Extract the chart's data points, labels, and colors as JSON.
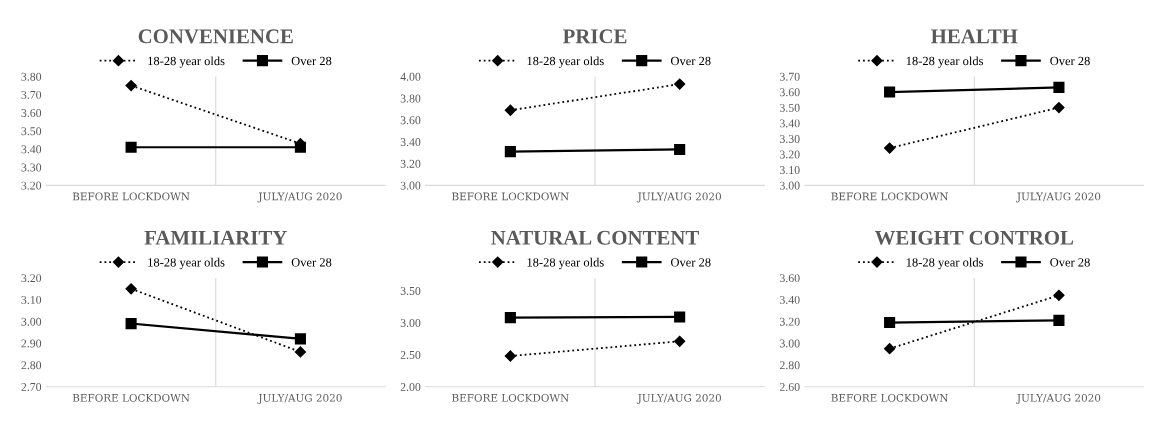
{
  "chart_data": [
    {
      "type": "line",
      "title": "CONVENIENCE",
      "categories": [
        "BEFORE LOCKDOWN",
        "JULY/AUG 2020"
      ],
      "ylim": [
        3.2,
        3.8
      ],
      "yticks": [
        {
          "value": 3.2,
          "label": "3.20"
        },
        {
          "value": 3.3,
          "label": "3.30"
        },
        {
          "value": 3.4,
          "label": "3.40"
        },
        {
          "value": 3.5,
          "label": "3.50"
        },
        {
          "value": 3.6,
          "label": "3.60"
        },
        {
          "value": 3.7,
          "label": "3.70"
        },
        {
          "value": 3.8,
          "label": "3.80"
        }
      ],
      "grid": "x",
      "legend": "top",
      "series": [
        {
          "name": "18-28 year olds",
          "color": "#000000",
          "marker": "diamond",
          "line_style": "dotted",
          "values": [
            3.75,
            3.43
          ]
        },
        {
          "name": "Over 28",
          "color": "#000000",
          "marker": "square",
          "line_style": "solid",
          "values": [
            3.41,
            3.41
          ]
        }
      ]
    },
    {
      "type": "line",
      "title": "PRICE",
      "categories": [
        "BEFORE LOCKDOWN",
        "JULY/AUG 2020"
      ],
      "ylim": [
        3.0,
        4.0
      ],
      "yticks": [
        {
          "value": 3.0,
          "label": "3.00"
        },
        {
          "value": 3.2,
          "label": "3.20"
        },
        {
          "value": 3.4,
          "label": "3.40"
        },
        {
          "value": 3.6,
          "label": "3.60"
        },
        {
          "value": 3.8,
          "label": "3.80"
        },
        {
          "value": 4.0,
          "label": "4.00"
        }
      ],
      "grid": "x",
      "legend": "top",
      "series": [
        {
          "name": "18-28 year olds",
          "color": "#000000",
          "marker": "diamond",
          "line_style": "dotted",
          "values": [
            3.69,
            3.93
          ]
        },
        {
          "name": "Over 28",
          "color": "#000000",
          "marker": "square",
          "line_style": "solid",
          "values": [
            3.31,
            3.33
          ]
        }
      ]
    },
    {
      "type": "line",
      "title": "HEALTH",
      "categories": [
        "BEFORE LOCKDOWN",
        "JULY/AUG 2020"
      ],
      "ylim": [
        3.0,
        3.7
      ],
      "yticks": [
        {
          "value": 3.0,
          "label": "3.00"
        },
        {
          "value": 3.1,
          "label": "3.10"
        },
        {
          "value": 3.2,
          "label": "3.20"
        },
        {
          "value": 3.3,
          "label": "3.30"
        },
        {
          "value": 3.4,
          "label": "3.40"
        },
        {
          "value": 3.5,
          "label": "3.50"
        },
        {
          "value": 3.6,
          "label": "3.60"
        },
        {
          "value": 3.7,
          "label": "3.70"
        }
      ],
      "grid": "x",
      "legend": "top",
      "series": [
        {
          "name": "18-28 year olds",
          "color": "#000000",
          "marker": "diamond",
          "line_style": "dotted",
          "values": [
            3.24,
            3.5
          ]
        },
        {
          "name": "Over 28",
          "color": "#000000",
          "marker": "square",
          "line_style": "solid",
          "values": [
            3.6,
            3.63
          ]
        }
      ]
    },
    {
      "type": "line",
      "title": "FAMILIARITY",
      "categories": [
        "BEFORE LOCKDOWN",
        "JULY/AUG 2020"
      ],
      "ylim": [
        2.7,
        3.2
      ],
      "yticks": [
        {
          "value": 2.7,
          "label": "2.70"
        },
        {
          "value": 2.8,
          "label": "2.80"
        },
        {
          "value": 2.9,
          "label": "2.90"
        },
        {
          "value": 3.0,
          "label": "3.00"
        },
        {
          "value": 3.1,
          "label": "3.10"
        },
        {
          "value": 3.2,
          "label": "3.20"
        }
      ],
      "grid": "x",
      "legend": "top",
      "series": [
        {
          "name": "18-28 year olds",
          "color": "#000000",
          "marker": "diamond",
          "line_style": "dotted",
          "values": [
            3.15,
            2.86
          ]
        },
        {
          "name": "Over 28",
          "color": "#000000",
          "marker": "square",
          "line_style": "solid",
          "values": [
            2.99,
            2.92
          ]
        }
      ]
    },
    {
      "type": "line",
      "title": "NATURAL CONTENT",
      "categories": [
        "BEFORE LOCKDOWN",
        "JULY/AUG 2020"
      ],
      "ylim": [
        2.0,
        3.7
      ],
      "yticks": [
        {
          "value": 2.0,
          "label": "2.00"
        },
        {
          "value": 2.5,
          "label": "2.50"
        },
        {
          "value": 3.0,
          "label": "3.00"
        },
        {
          "value": 3.5,
          "label": "3.50"
        }
      ],
      "grid": "x",
      "legend": "top",
      "series": [
        {
          "name": "18-28 year olds",
          "color": "#000000",
          "marker": "diamond",
          "line_style": "dotted",
          "values": [
            2.48,
            2.71
          ]
        },
        {
          "name": "Over 28",
          "color": "#000000",
          "marker": "square",
          "line_style": "solid",
          "values": [
            3.08,
            3.09
          ]
        }
      ]
    },
    {
      "type": "line",
      "title": "WEIGHT CONTROL",
      "categories": [
        "BEFORE LOCKDOWN",
        "JULY/AUG 2020"
      ],
      "ylim": [
        2.6,
        3.6
      ],
      "yticks": [
        {
          "value": 2.6,
          "label": "2.60"
        },
        {
          "value": 2.8,
          "label": "2.80"
        },
        {
          "value": 3.0,
          "label": "3.00"
        },
        {
          "value": 3.2,
          "label": "3.20"
        },
        {
          "value": 3.4,
          "label": "3.40"
        },
        {
          "value": 3.6,
          "label": "3.60"
        }
      ],
      "grid": "x",
      "legend": "top",
      "series": [
        {
          "name": "18-28 year olds",
          "color": "#000000",
          "marker": "diamond",
          "line_style": "dotted",
          "values": [
            2.95,
            3.44
          ]
        },
        {
          "name": "Over 28",
          "color": "#000000",
          "marker": "square",
          "line_style": "solid",
          "values": [
            3.19,
            3.21
          ]
        }
      ]
    }
  ]
}
